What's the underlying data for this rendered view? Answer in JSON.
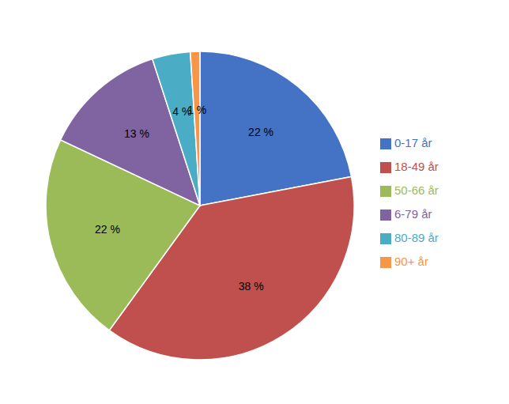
{
  "chart_data": {
    "type": "pie",
    "categories": [
      "0-17 år",
      "18-49 år",
      "50-66 år",
      "6-79 år",
      "80-89 år",
      "90+ år"
    ],
    "values": [
      22,
      38,
      22,
      13,
      4,
      1
    ],
    "value_labels": [
      "22 %",
      "38 %",
      "22 %",
      "13 %",
      "4 %",
      "1 %"
    ],
    "data_labels": true,
    "colors": [
      "#4472C4",
      "#C0504D",
      "#9BBB59",
      "#8064A2",
      "#4BACC6",
      "#F79646"
    ],
    "legend": "right"
  }
}
